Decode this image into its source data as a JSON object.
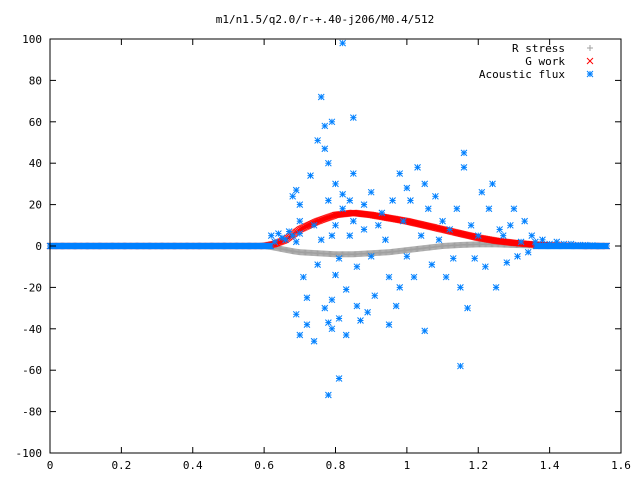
{
  "chart_data": {
    "type": "scatter",
    "title": "m1/n1.5/q2.0/r-+.40-j206/M0.4/512",
    "xlabel": "",
    "ylabel": "",
    "xlim": [
      0,
      1.6
    ],
    "ylim": [
      -100,
      100
    ],
    "xticks": [
      "0",
      "0.2",
      "0.4",
      "0.6",
      "0.8",
      "1",
      "1.2",
      "1.4",
      "1.6"
    ],
    "yticks": [
      "100",
      "80",
      "60",
      "40",
      "20",
      "0",
      "-20",
      "-40",
      "-60",
      "-80",
      "-100"
    ],
    "grid": false,
    "legend_position": "top-right",
    "series": [
      {
        "name": "R stress",
        "marker": "plus",
        "color": "#a0a0a0",
        "curve": {
          "x": [
            0,
            0.6,
            0.62,
            0.65,
            0.68,
            0.7,
            0.75,
            0.8,
            0.85,
            0.9,
            0.95,
            1.0,
            1.05,
            1.1,
            1.15,
            1.2,
            1.25,
            1.3,
            1.35,
            1.4,
            1.5,
            1.56
          ],
          "y": [
            0,
            0,
            -0.5,
            -1.5,
            -2.5,
            -3.0,
            -3.5,
            -4.0,
            -4.0,
            -3.5,
            -3.0,
            -2.0,
            -1.0,
            0,
            0.5,
            0.8,
            0.8,
            0.5,
            0.3,
            0.2,
            0,
            0
          ]
        }
      },
      {
        "name": "G work",
        "marker": "cross",
        "color": "#ff0000",
        "curve": {
          "x": [
            0,
            0.6,
            0.63,
            0.66,
            0.7,
            0.75,
            0.8,
            0.85,
            0.9,
            0.95,
            1.0,
            1.05,
            1.1,
            1.15,
            1.2,
            1.25,
            1.3,
            1.35,
            1.4,
            1.5,
            1.56
          ],
          "y": [
            0,
            0,
            1,
            3,
            8,
            12,
            15,
            16,
            15,
            13.5,
            12,
            10,
            8,
            6,
            4,
            2.5,
            1.5,
            0.8,
            0.3,
            0,
            0
          ]
        }
      },
      {
        "name": "Acoustic flux",
        "marker": "asterisk",
        "color": "#0080ff",
        "points": [
          [
            0.62,
            5
          ],
          [
            0.63,
            2
          ],
          [
            0.64,
            6
          ],
          [
            0.65,
            4
          ],
          [
            0.66,
            3
          ],
          [
            0.67,
            7
          ],
          [
            0.68,
            5
          ],
          [
            0.69,
            2
          ],
          [
            0.7,
            6
          ],
          [
            0.68,
            24
          ],
          [
            0.69,
            27
          ],
          [
            0.7,
            20
          ],
          [
            0.7,
            12
          ],
          [
            0.69,
            -33
          ],
          [
            0.7,
            -43
          ],
          [
            0.71,
            -15
          ],
          [
            0.72,
            -25
          ],
          [
            0.72,
            -38
          ],
          [
            0.73,
            34
          ],
          [
            0.74,
            10
          ],
          [
            0.74,
            -46
          ],
          [
            0.75,
            51
          ],
          [
            0.75,
            -9
          ],
          [
            0.76,
            72
          ],
          [
            0.76,
            3
          ],
          [
            0.77,
            58
          ],
          [
            0.77,
            47
          ],
          [
            0.77,
            -30
          ],
          [
            0.78,
            22
          ],
          [
            0.78,
            40
          ],
          [
            0.78,
            -72
          ],
          [
            0.78,
            -37
          ],
          [
            0.79,
            60
          ],
          [
            0.79,
            5
          ],
          [
            0.79,
            -40
          ],
          [
            0.79,
            -26
          ],
          [
            0.8,
            30
          ],
          [
            0.8,
            10
          ],
          [
            0.8,
            -14
          ],
          [
            0.81,
            -35
          ],
          [
            0.81,
            -6
          ],
          [
            0.81,
            -64
          ],
          [
            0.82,
            98
          ],
          [
            0.82,
            25
          ],
          [
            0.82,
            18
          ],
          [
            0.83,
            -21
          ],
          [
            0.83,
            -43
          ],
          [
            0.84,
            22
          ],
          [
            0.84,
            5
          ],
          [
            0.85,
            62
          ],
          [
            0.85,
            35
          ],
          [
            0.85,
            12
          ],
          [
            0.86,
            -10
          ],
          [
            0.86,
            -29
          ],
          [
            0.87,
            -36
          ],
          [
            0.88,
            20
          ],
          [
            0.88,
            8
          ],
          [
            0.89,
            -32
          ],
          [
            0.9,
            26
          ],
          [
            0.9,
            -5
          ],
          [
            0.91,
            -24
          ],
          [
            0.92,
            10
          ],
          [
            0.93,
            16
          ],
          [
            0.94,
            3
          ],
          [
            0.95,
            -15
          ],
          [
            0.95,
            -38
          ],
          [
            0.96,
            22
          ],
          [
            0.97,
            -29
          ],
          [
            0.98,
            35
          ],
          [
            0.98,
            -20
          ],
          [
            0.99,
            12
          ],
          [
            1.0,
            28
          ],
          [
            1.0,
            -5
          ],
          [
            1.01,
            22
          ],
          [
            1.02,
            -15
          ],
          [
            1.03,
            38
          ],
          [
            1.04,
            5
          ],
          [
            1.05,
            30
          ],
          [
            1.05,
            -41
          ],
          [
            1.06,
            18
          ],
          [
            1.07,
            -9
          ],
          [
            1.08,
            24
          ],
          [
            1.09,
            3
          ],
          [
            1.1,
            12
          ],
          [
            1.11,
            -15
          ],
          [
            1.12,
            8
          ],
          [
            1.13,
            -6
          ],
          [
            1.14,
            18
          ],
          [
            1.15,
            -58
          ],
          [
            1.15,
            -20
          ],
          [
            1.16,
            45
          ],
          [
            1.16,
            38
          ],
          [
            1.17,
            -30
          ],
          [
            1.18,
            10
          ],
          [
            1.19,
            -6
          ],
          [
            1.2,
            5
          ],
          [
            1.21,
            26
          ],
          [
            1.22,
            -10
          ],
          [
            1.23,
            18
          ],
          [
            1.24,
            30
          ],
          [
            1.25,
            -20
          ],
          [
            1.26,
            8
          ],
          [
            1.27,
            5
          ],
          [
            1.28,
            -8
          ],
          [
            1.29,
            10
          ],
          [
            1.3,
            18
          ],
          [
            1.31,
            -5
          ],
          [
            1.32,
            2
          ],
          [
            1.33,
            12
          ],
          [
            1.34,
            -3
          ],
          [
            1.35,
            5
          ],
          [
            1.36,
            2
          ],
          [
            1.38,
            3
          ],
          [
            1.4,
            1
          ],
          [
            1.42,
            2
          ],
          [
            1.44,
            1
          ],
          [
            1.46,
            1
          ],
          [
            1.48,
            0.5
          ],
          [
            1.5,
            0.5
          ],
          [
            1.52,
            0.3
          ]
        ]
      }
    ]
  }
}
